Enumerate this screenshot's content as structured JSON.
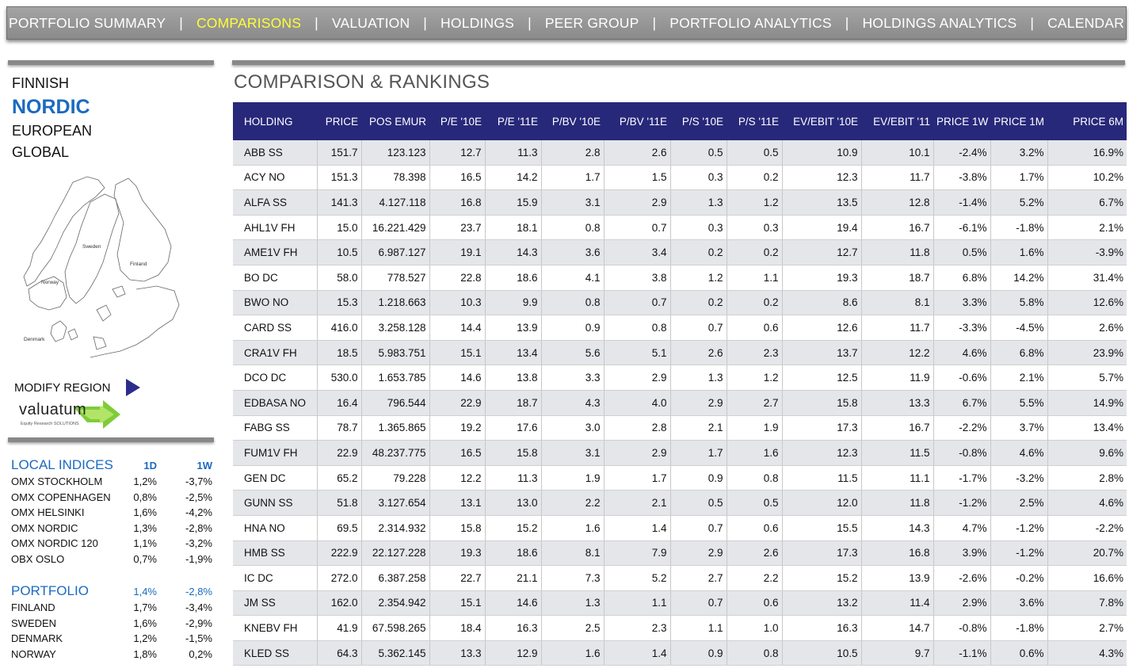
{
  "nav": {
    "items": [
      {
        "label": "PORTFOLIO SUMMARY",
        "active": false
      },
      {
        "label": "COMPARISONS",
        "active": true
      },
      {
        "label": "VALUATION",
        "active": false
      },
      {
        "label": "HOLDINGS",
        "active": false
      },
      {
        "label": "PEER GROUP",
        "active": false
      },
      {
        "label": "PORTFOLIO ANALYTICS",
        "active": false
      },
      {
        "label": "HOLDINGS ANALYTICS",
        "active": false
      },
      {
        "label": "CALENDAR",
        "active": false
      }
    ],
    "separator": "|",
    "active_color": "#ffff33"
  },
  "regions": {
    "items": [
      {
        "label": "FINNISH",
        "selected": false
      },
      {
        "label": "NORDIC",
        "selected": true
      },
      {
        "label": "EUROPEAN",
        "selected": false
      },
      {
        "label": "GLOBAL",
        "selected": false
      }
    ],
    "selected_color": "#1b6ac0"
  },
  "map": {
    "labels": [
      "Sweden",
      "Finland",
      "Norway",
      "Denmark"
    ]
  },
  "modify_region": {
    "label": "MODIFY REGION"
  },
  "logo": {
    "text": "valuatum",
    "subtext": "Equity Research SOLUTIONS"
  },
  "local_indices": {
    "title": "LOCAL INDICES",
    "col_1d": "1D",
    "col_1w": "1W",
    "rows": [
      {
        "name": "OMX STOCKHOLM",
        "d1": "1,2%",
        "w1": "-3,7%"
      },
      {
        "name": "OMX COPENHAGEN",
        "d1": "0,8%",
        "w1": "-2,5%"
      },
      {
        "name": "OMX HELSINKI",
        "d1": "1,6%",
        "w1": "-4,2%"
      },
      {
        "name": "OMX NORDIC",
        "d1": "1,3%",
        "w1": "-2,8%"
      },
      {
        "name": "OMX NORDIC 120",
        "d1": "1,1%",
        "w1": "-3,2%"
      },
      {
        "name": "OBX OSLO",
        "d1": "0,7%",
        "w1": "-1,9%"
      }
    ]
  },
  "portfolio": {
    "title": "PORTFOLIO",
    "d1": "1,4%",
    "w1": "-2,8%",
    "rows": [
      {
        "name": "FINLAND",
        "d1": "1,7%",
        "w1": "-3,4%"
      },
      {
        "name": "SWEDEN",
        "d1": "1,6%",
        "w1": "-2,9%"
      },
      {
        "name": "DENMARK",
        "d1": "1,2%",
        "w1": "-1,5%"
      },
      {
        "name": "NORWAY",
        "d1": "1,8%",
        "w1": "0,2%"
      }
    ]
  },
  "main": {
    "title": "COMPARISON & RANKINGS",
    "header_color": "#27287a",
    "columns": [
      "HOLDING",
      "PRICE",
      "POS EMUR",
      "P/E '10E",
      "P/E '11E",
      "P/BV '10E",
      "P/BV '11E",
      "P/S '10E",
      "P/S '11E",
      "EV/EBIT '10E",
      "EV/EBIT '11",
      "PRICE 1W",
      "PRICE 1M",
      "PRICE 6M"
    ],
    "rows": [
      [
        "ABB SS",
        "151.7",
        "123.123",
        "12.7",
        "11.3",
        "2.8",
        "2.6",
        "0.5",
        "0.5",
        "10.9",
        "10.1",
        "-2.4%",
        "3.2%",
        "16.9%"
      ],
      [
        "ACY NO",
        "151.3",
        "78.398",
        "16.5",
        "14.2",
        "1.7",
        "1.5",
        "0.3",
        "0.2",
        "12.3",
        "11.7",
        "-3.8%",
        "1.7%",
        "10.2%"
      ],
      [
        "ALFA SS",
        "141.3",
        "4.127.118",
        "16.8",
        "15.9",
        "3.1",
        "2.9",
        "1.3",
        "1.2",
        "13.5",
        "12.8",
        "-1.4%",
        "5.2%",
        "6.7%"
      ],
      [
        "AHL1V FH",
        "15.0",
        "16.221.429",
        "23.7",
        "18.1",
        "0.8",
        "0.7",
        "0.3",
        "0.3",
        "19.4",
        "16.7",
        "-6.1%",
        "-1.8%",
        "2.1%"
      ],
      [
        "AME1V FH",
        "10.5",
        "6.987.127",
        "19.1",
        "14.3",
        "3.6",
        "3.4",
        "0.2",
        "0.2",
        "12.7",
        "11.8",
        "0.5%",
        "1.6%",
        "-3.9%"
      ],
      [
        "BO DC",
        "58.0",
        "778.527",
        "22.8",
        "18.6",
        "4.1",
        "3.8",
        "1.2",
        "1.1",
        "19.3",
        "18.7",
        "6.8%",
        "14.2%",
        "31.4%"
      ],
      [
        "BWO NO",
        "15.3",
        "1.218.663",
        "10.3",
        "9.9",
        "0.8",
        "0.7",
        "0.2",
        "0.2",
        "8.6",
        "8.1",
        "3.3%",
        "5.8%",
        "12.6%"
      ],
      [
        "CARD SS",
        "416.0",
        "3.258.128",
        "14.4",
        "13.9",
        "0.9",
        "0.8",
        "0.7",
        "0.6",
        "12.6",
        "11.7",
        "-3.3%",
        "-4.5%",
        "2.6%"
      ],
      [
        "CRA1V FH",
        "18.5",
        "5.983.751",
        "15.1",
        "13.4",
        "5.6",
        "5.1",
        "2.6",
        "2.3",
        "13.7",
        "12.2",
        "4.6%",
        "6.8%",
        "23.9%"
      ],
      [
        "DCO DC",
        "530.0",
        "1.653.785",
        "14.6",
        "13.8",
        "3.3",
        "2.9",
        "1.3",
        "1.2",
        "12.5",
        "11.9",
        "-0.6%",
        "2.1%",
        "5.7%"
      ],
      [
        "EDBASA NO",
        "16.4",
        "796.544",
        "22.9",
        "18.7",
        "4.3",
        "4.0",
        "2.9",
        "2.7",
        "15.8",
        "13.3",
        "6.7%",
        "5.5%",
        "14.9%"
      ],
      [
        "FABG SS",
        "78.7",
        "1.365.865",
        "19.2",
        "17.6",
        "3.0",
        "2.8",
        "2.1",
        "1.9",
        "17.3",
        "16.7",
        "-2.2%",
        "3.7%",
        "13.4%"
      ],
      [
        "FUM1V FH",
        "22.9",
        "48.237.775",
        "16.5",
        "15.8",
        "3.1",
        "2.9",
        "1.7",
        "1.6",
        "12.3",
        "11.5",
        "-0.8%",
        "4.6%",
        "9.6%"
      ],
      [
        "GEN DC",
        "65.2",
        "79.228",
        "12.2",
        "11.3",
        "1.9",
        "1.7",
        "0.9",
        "0.8",
        "11.5",
        "11.1",
        "-1.7%",
        "-3.2%",
        "2.8%"
      ],
      [
        "GUNN SS",
        "51.8",
        "3.127.654",
        "13.1",
        "13.0",
        "2.2",
        "2.1",
        "0.5",
        "0.5",
        "12.0",
        "11.8",
        "-1.2%",
        "2.5%",
        "4.6%"
      ],
      [
        "HNA NO",
        "69.5",
        "2.314.932",
        "15.8",
        "15.2",
        "1.6",
        "1.4",
        "0.7",
        "0.6",
        "15.5",
        "14.3",
        "4.7%",
        "-1.2%",
        "-2.2%"
      ],
      [
        "HMB SS",
        "222.9",
        "22.127.228",
        "19.3",
        "18.6",
        "8.1",
        "7.9",
        "2.9",
        "2.6",
        "17.3",
        "16.8",
        "3.9%",
        "-1.2%",
        "20.7%"
      ],
      [
        "IC DC",
        "272.0",
        "6.387.258",
        "22.7",
        "21.1",
        "7.3",
        "5.2",
        "2.7",
        "2.2",
        "15.2",
        "13.9",
        "-2.6%",
        "-0.2%",
        "16.6%"
      ],
      [
        "JM SS",
        "162.0",
        "2.354.942",
        "15.1",
        "14.6",
        "1.3",
        "1.1",
        "0.7",
        "0.6",
        "13.2",
        "11.4",
        "2.9%",
        "3.6%",
        "7.8%"
      ],
      [
        "KNEBV FH",
        "41.9",
        "67.598.265",
        "18.4",
        "16.3",
        "2.5",
        "2.3",
        "1.1",
        "1.0",
        "16.3",
        "14.7",
        "-0.8%",
        "-1.8%",
        "2.7%"
      ],
      [
        "KLED SS",
        "64.3",
        "5.362.145",
        "13.3",
        "12.9",
        "1.6",
        "1.4",
        "0.9",
        "0.8",
        "10.5",
        "9.7",
        "-1.1%",
        "0.6%",
        "4.3%"
      ]
    ]
  }
}
